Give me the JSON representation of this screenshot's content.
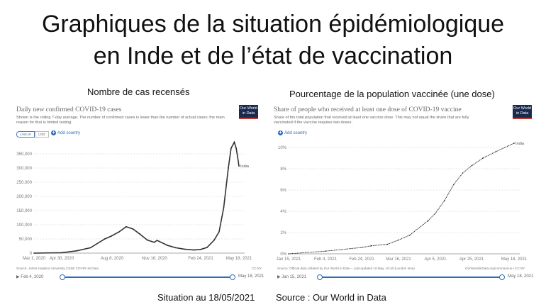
{
  "title_line1": "Graphiques de la situation épidémiologique",
  "title_line2": "en Inde et de l’état de vaccination",
  "left_label": "Nombre de cas recensés",
  "right_label": "Pourcentage de la population vaccinée (une dose)",
  "footer": {
    "situation": "Situation au 18/05/2021",
    "source": "Source : Our World in Data"
  },
  "logo": "Our World in Data",
  "chart_data": [
    {
      "type": "line",
      "title": "Daily new confirmed COVID-19 cases",
      "subtitle": "Shown is the rolling 7-day average. The number of confirmed cases is lower than the number of actual cases; the main reason for that is limited testing.",
      "scale_buttons": [
        "LINEAR",
        "LOG"
      ],
      "add_country": "Add country",
      "x_ticks": [
        "Mar 1, 2020",
        "Apr 30, 2020",
        "Aug 8, 2020",
        "Nov 16, 2020",
        "Feb 24, 2021",
        "May 18, 2021"
      ],
      "y_ticks": [
        "0",
        "50,000",
        "100,000",
        "150,000",
        "200,000",
        "250,000",
        "300,000",
        "350,000"
      ],
      "ylim": [
        0,
        350000
      ],
      "grid": true,
      "series": [
        {
          "name": "India",
          "x": [
            "2020-03-01",
            "2020-04-30",
            "2020-06-01",
            "2020-07-01",
            "2020-08-01",
            "2020-08-15",
            "2020-09-01",
            "2020-09-16",
            "2020-10-01",
            "2020-10-15",
            "2020-11-01",
            "2020-11-16",
            "2020-11-22",
            "2020-12-15",
            "2021-01-01",
            "2021-01-20",
            "2021-02-10",
            "2021-02-24",
            "2021-03-10",
            "2021-03-25",
            "2021-04-05",
            "2021-04-15",
            "2021-04-25",
            "2021-05-01",
            "2021-05-08",
            "2021-05-12",
            "2021-05-15",
            "2021-05-18"
          ],
          "values": [
            0,
            1500,
            8000,
            19000,
            50000,
            60000,
            75000,
            93000,
            85000,
            68000,
            46000,
            38000,
            45000,
            27000,
            19000,
            14000,
            11000,
            13000,
            20000,
            45000,
            75000,
            160000,
            300000,
            370000,
            391000,
            370000,
            340000,
            307000
          ]
        }
      ],
      "source": "Source: Johns Hopkins University CSSE COVID-19 Data",
      "license": "CC BY",
      "slider": {
        "start": "Feb 4, 2020",
        "end": "May 18, 2021"
      }
    },
    {
      "type": "line",
      "title": "Share of people who received at least one dose of COVID-19 vaccine",
      "subtitle": "Share of the total population that received at least one vaccine dose. This may not equal the share that are fully vaccinated if the vaccine requires two doses.",
      "add_country": "Add country",
      "x_ticks": [
        "Jan 15, 2021",
        "Feb 4, 2021",
        "Feb 24, 2021",
        "Mar 16, 2021",
        "Apr 5, 2021",
        "Apr 25, 2021",
        "May 18, 2021"
      ],
      "y_ticks": [
        "0%",
        "2%",
        "4%",
        "6%",
        "8%",
        "10%"
      ],
      "ylim": [
        0,
        10
      ],
      "grid": true,
      "series": [
        {
          "name": "India",
          "x": [
            "2021-01-15",
            "2021-02-04",
            "2021-02-24",
            "2021-03-01",
            "2021-03-10",
            "2021-03-16",
            "2021-03-22",
            "2021-04-01",
            "2021-04-05",
            "2021-04-10",
            "2021-04-15",
            "2021-04-20",
            "2021-04-25",
            "2021-05-01",
            "2021-05-08",
            "2021-05-18"
          ],
          "values": [
            0,
            0.25,
            0.6,
            0.75,
            0.9,
            1.3,
            1.75,
            3.1,
            3.8,
            5.0,
            6.5,
            7.6,
            8.3,
            9.0,
            9.6,
            10.4
          ]
        }
      ],
      "source": "Source: Official data collated by Our World in Data – Last updated 19 May, 10:40 (London time)",
      "license": "OurWorldInData.org/coronavirus • CC BY",
      "slider": {
        "start": "Jan 15, 2021",
        "end": "May 18, 2021"
      }
    }
  ]
}
